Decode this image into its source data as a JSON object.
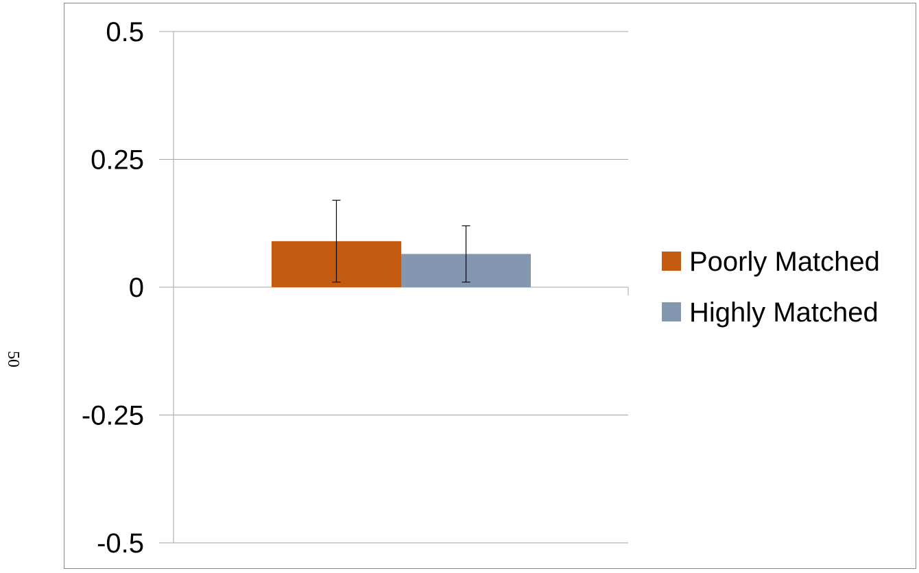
{
  "page_number": "50",
  "colors": {
    "poorly": "#c55a11",
    "highly": "#8497b0",
    "grid": "#a6a6a6",
    "axis": "#a6a6a6",
    "error_bar": "#000000"
  },
  "chart_data": {
    "type": "bar",
    "categories": [
      ""
    ],
    "series": [
      {
        "name": "Poorly Matched",
        "values": [
          0.09
        ],
        "error_low": [
          0.01
        ],
        "error_high": [
          0.17
        ]
      },
      {
        "name": "Highly Matched",
        "values": [
          0.065
        ],
        "error_low": [
          0.01
        ],
        "error_high": [
          0.12
        ]
      }
    ],
    "ylim": [
      -0.5,
      0.5
    ],
    "yticks": [
      0.5,
      0.25,
      0,
      -0.25,
      -0.5
    ],
    "ytick_labels": [
      "0.5",
      "0.25",
      "0",
      "-0.25",
      "-0.5"
    ],
    "grid": true,
    "legend_position": "right"
  }
}
